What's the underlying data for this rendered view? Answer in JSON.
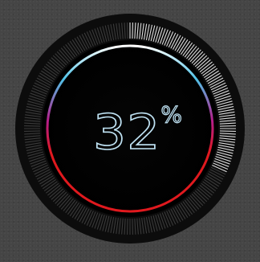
{
  "gauge": {
    "value": 32,
    "value_text": "32",
    "unit": "%",
    "colors": {
      "background": "#454545",
      "face": "#000000",
      "outer_ring": "#0c0c0c",
      "tick_active": "#dcdcdc",
      "tick_inactive": "#3a3a3a",
      "arc_top": "#ffffff",
      "arc_upper": "#4fc3e8",
      "arc_mid": "#b51e8c",
      "arc_lower": "#e0191e",
      "text": "#bfe2f3"
    }
  }
}
